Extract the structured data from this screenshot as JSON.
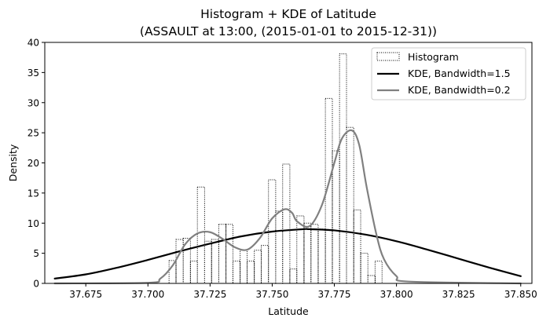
{
  "chart_data": {
    "type": "histogram+line",
    "title": "Histogram + KDE of Latitude",
    "subtitle": "(ASSAULT at 13:00, (2015-01-01 to 2015-12-31))",
    "xlabel": "Latitude",
    "ylabel": "Density",
    "xlim": [
      37.6585,
      37.8545
    ],
    "ylim": [
      0,
      40
    ],
    "xticks": [
      37.675,
      37.7,
      37.725,
      37.75,
      37.775,
      37.8,
      37.825,
      37.85
    ],
    "xtick_labels": [
      "37.675",
      "37.700",
      "37.725",
      "37.750",
      "37.775",
      "37.800",
      "37.825",
      "37.850"
    ],
    "yticks": [
      0,
      5,
      10,
      15,
      20,
      25,
      30,
      35,
      40
    ],
    "ytick_labels": [
      "0",
      "5",
      "10",
      "15",
      "20",
      "25",
      "30",
      "35",
      "40"
    ],
    "grid": false,
    "legend": {
      "placement": "top-right",
      "entries": [
        "Histogram",
        "KDE, Bandwidth=1.5",
        "KDE, Bandwidth=0.2"
      ]
    },
    "histogram": {
      "name": "Histogram",
      "style": "dotted outline",
      "color": "#000000",
      "bins": [
        {
          "start": 37.7085,
          "end": 37.7113,
          "value": 3.8
        },
        {
          "start": 37.7113,
          "end": 37.7142,
          "value": 7.3
        },
        {
          "start": 37.7142,
          "end": 37.7171,
          "value": 7.5
        },
        {
          "start": 37.7171,
          "end": 37.7199,
          "value": 3.7
        },
        {
          "start": 37.7199,
          "end": 37.7228,
          "value": 16.0
        },
        {
          "start": 37.7228,
          "end": 37.7256,
          "value": 7.0
        },
        {
          "start": 37.7256,
          "end": 37.7285,
          "value": 7.3
        },
        {
          "start": 37.7285,
          "end": 37.7314,
          "value": 9.8
        },
        {
          "start": 37.7314,
          "end": 37.7342,
          "value": 9.8
        },
        {
          "start": 37.7342,
          "end": 37.7371,
          "value": 3.7
        },
        {
          "start": 37.7371,
          "end": 37.7399,
          "value": 5.5
        },
        {
          "start": 37.7399,
          "end": 37.7428,
          "value": 3.7
        },
        {
          "start": 37.7428,
          "end": 37.7456,
          "value": 5.5
        },
        {
          "start": 37.7456,
          "end": 37.7485,
          "value": 6.3
        },
        {
          "start": 37.7485,
          "end": 37.7514,
          "value": 17.2
        },
        {
          "start": 37.7514,
          "end": 37.7542,
          "value": 12.0
        },
        {
          "start": 37.7542,
          "end": 37.7571,
          "value": 19.8
        },
        {
          "start": 37.7571,
          "end": 37.7599,
          "value": 2.4
        },
        {
          "start": 37.7599,
          "end": 37.7628,
          "value": 11.2
        },
        {
          "start": 37.7628,
          "end": 37.7656,
          "value": 10.0
        },
        {
          "start": 37.7656,
          "end": 37.7685,
          "value": 9.8
        },
        {
          "start": 37.7685,
          "end": 37.7714,
          "value": 9.0
        },
        {
          "start": 37.7714,
          "end": 37.7742,
          "value": 30.7
        },
        {
          "start": 37.7742,
          "end": 37.7771,
          "value": 22.0
        },
        {
          "start": 37.7771,
          "end": 37.7799,
          "value": 38.1
        },
        {
          "start": 37.7799,
          "end": 37.7828,
          "value": 25.9
        },
        {
          "start": 37.7828,
          "end": 37.7856,
          "value": 12.2
        },
        {
          "start": 37.7856,
          "end": 37.7885,
          "value": 5.0
        },
        {
          "start": 37.7885,
          "end": 37.7914,
          "value": 1.3
        },
        {
          "start": 37.7914,
          "end": 37.7942,
          "value": 3.7
        }
      ]
    },
    "series": [
      {
        "name": "KDE, Bandwidth=1.5",
        "color": "#000000",
        "x": [
          37.6625,
          37.675,
          37.6875,
          37.7,
          37.7125,
          37.725,
          37.7375,
          37.75,
          37.7625,
          37.765,
          37.775,
          37.7875,
          37.8,
          37.8125,
          37.825,
          37.8375,
          37.85
        ],
        "values": [
          0.8,
          1.5,
          2.6,
          3.9,
          5.3,
          6.6,
          7.8,
          8.6,
          9.0,
          9.0,
          8.8,
          8.1,
          7.0,
          5.6,
          4.1,
          2.6,
          1.2
        ]
      },
      {
        "name": "KDE, Bandwidth=0.2",
        "color": "#808080",
        "x": [
          37.6625,
          37.7,
          37.705,
          37.71,
          37.715,
          37.72,
          37.725,
          37.73,
          37.735,
          37.74,
          37.745,
          37.75,
          37.755,
          37.758,
          37.76,
          37.765,
          37.77,
          37.775,
          37.778,
          37.782,
          37.785,
          37.788,
          37.792,
          37.795,
          37.8,
          37.805,
          37.85
        ],
        "values": [
          0.0,
          0.1,
          0.8,
          3.0,
          6.5,
          8.3,
          8.5,
          7.4,
          6.0,
          5.6,
          7.5,
          10.8,
          12.3,
          11.7,
          10.3,
          9.5,
          13.0,
          20.0,
          24.0,
          25.4,
          23.0,
          16.0,
          8.0,
          4.0,
          1.2,
          0.3,
          0.0
        ]
      }
    ]
  }
}
